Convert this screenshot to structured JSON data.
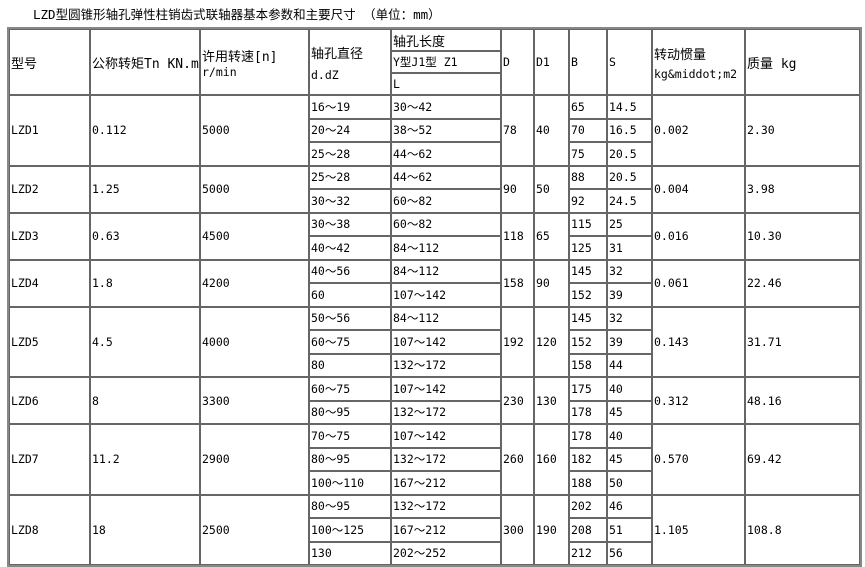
{
  "title": "LZD型圆锥形轴孔弹性柱销齿式联轴器基本参数和主要尺寸 （单位：mm）",
  "headers": {
    "model": "型号",
    "torque": "公称转矩Tn KN.m",
    "speed_l1": "许用转速[n]",
    "speed_l2": "r/min",
    "bore_l1": "轴孔直径",
    "bore_l2": "d.dZ",
    "length": "轴孔长度",
    "length_types": "Y型J1型 Z1",
    "length_L": "L",
    "D": "D",
    "D1": "D1",
    "B": "B",
    "S": "S",
    "inertia_l1": "转动惯量",
    "inertia_l2": "kg&middot;m2",
    "mass": "质量 kg"
  },
  "models": [
    {
      "model": "LZD1",
      "torque": "0.112",
      "speed": "5000",
      "D": "78",
      "D1": "40",
      "inertia": "0.002",
      "mass": "2.30",
      "rows": [
        {
          "d": "16～19",
          "L": "30～42",
          "B": "65",
          "S": "14.5"
        },
        {
          "d": "20～24",
          "L": "38～52",
          "B": "70",
          "S": "16.5"
        },
        {
          "d": "25～28",
          "L": "44～62",
          "B": "75",
          "S": "20.5"
        }
      ]
    },
    {
      "model": "LZD2",
      "torque": "1.25",
      "speed": "5000",
      "D": "90",
      "D1": "50",
      "inertia": "0.004",
      "mass": "3.98",
      "rows": [
        {
          "d": "25～28",
          "L": "44～62",
          "B": "88",
          "S": "20.5"
        },
        {
          "d": "30～32",
          "L": "60～82",
          "B": "92",
          "S": "24.5"
        }
      ]
    },
    {
      "model": "LZD3",
      "torque": "0.63",
      "speed": "4500",
      "D": "118",
      "D1": "65",
      "inertia": "0.016",
      "mass": "10.30",
      "rows": [
        {
          "d": "30～38",
          "L": "60～82",
          "B": "115",
          "S": "25"
        },
        {
          "d": "40～42",
          "L": "84～112",
          "B": "125",
          "S": "31"
        }
      ]
    },
    {
      "model": "LZD4",
      "torque": "1.8",
      "speed": "4200",
      "D": "158",
      "D1": "90",
      "inertia": "0.061",
      "mass": "22.46",
      "rows": [
        {
          "d": "40～56",
          "L": "84～112",
          "B": "145",
          "S": "32"
        },
        {
          "d": "60",
          "L": "107～142",
          "B": "152",
          "S": "39"
        }
      ]
    },
    {
      "model": "LZD5",
      "torque": "4.5",
      "speed": "4000",
      "D": "192",
      "D1": "120",
      "inertia": "0.143",
      "mass": "31.71",
      "rows": [
        {
          "d": "50～56",
          "L": "84～112",
          "B": "145",
          "S": "32"
        },
        {
          "d": "60～75",
          "L": "107～142",
          "B": "152",
          "S": "39"
        },
        {
          "d": "80",
          "L": "132～172",
          "B": "158",
          "S": "44"
        }
      ]
    },
    {
      "model": "LZD6",
      "torque": "8",
      "speed": "3300",
      "D": "230",
      "D1": "130",
      "inertia": "0.312",
      "mass": "48.16",
      "rows": [
        {
          "d": "60～75",
          "L": "107～142",
          "B": "175",
          "S": "40"
        },
        {
          "d": "80～95",
          "L": "132～172",
          "B": "178",
          "S": "45"
        }
      ]
    },
    {
      "model": "LZD7",
      "torque": "11.2",
      "speed": "2900",
      "D": "260",
      "D1": "160",
      "inertia": "0.570",
      "mass": "69.42",
      "rows": [
        {
          "d": "70～75",
          "L": "107～142",
          "B": "178",
          "S": "40"
        },
        {
          "d": "80～95",
          "L": "132～172",
          "B": "182",
          "S": "45"
        },
        {
          "d": "100～110",
          "L": "167～212",
          "B": "188",
          "S": "50"
        }
      ]
    },
    {
      "model": "LZD8",
      "torque": "18",
      "speed": "2500",
      "D": "300",
      "D1": "190",
      "inertia": "1.105",
      "mass": "108.8",
      "rows": [
        {
          "d": "80～95",
          "L": "132～172",
          "B": "202",
          "S": "46"
        },
        {
          "d": "100～125",
          "L": "167～212",
          "B": "208",
          "S": "51"
        },
        {
          "d": "130",
          "L": "202～252",
          "B": "212",
          "S": "56"
        }
      ]
    }
  ]
}
